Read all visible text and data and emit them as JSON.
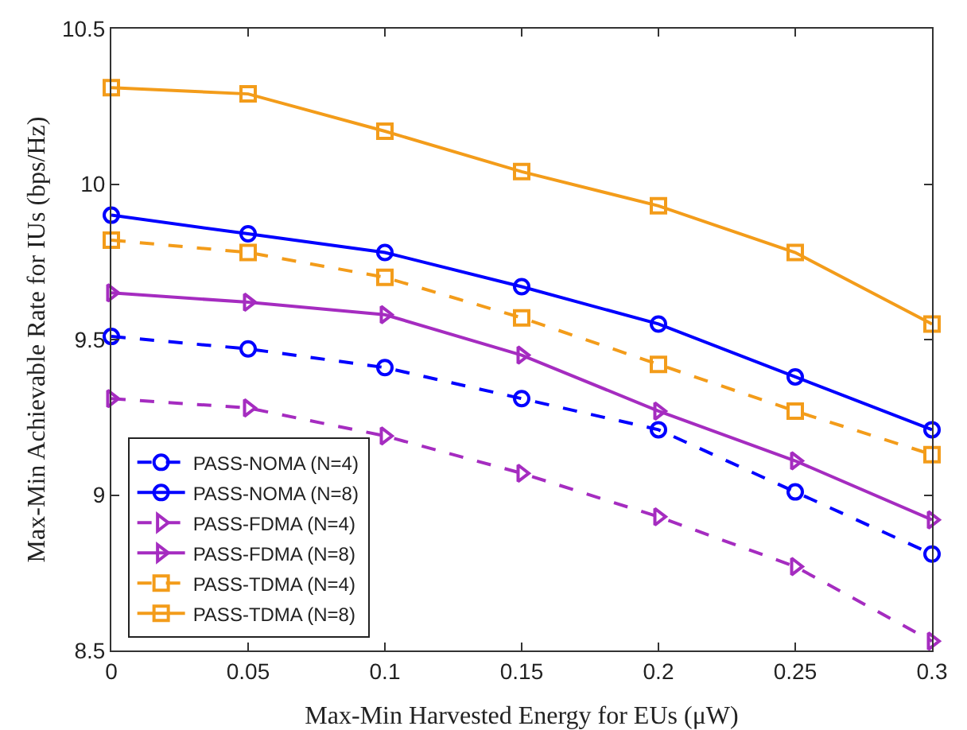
{
  "chart_data": {
    "type": "line",
    "xlabel": "Max-Min Harvested Energy for EUs (μW)",
    "ylabel": "Max-Min Achievable Rate for IUs (bps/Hz)",
    "x": [
      0,
      0.05,
      0.1,
      0.15,
      0.2,
      0.25,
      0.3
    ],
    "xlim": [
      0,
      0.3
    ],
    "xticks": [
      0,
      0.05,
      0.1,
      0.15,
      0.2,
      0.25,
      0.3
    ],
    "ylim": [
      8.5,
      10.5
    ],
    "yticks": [
      8.5,
      9,
      9.5,
      10,
      10.5
    ],
    "grid": false,
    "legend": "bottom left",
    "series": [
      {
        "name": "PASS-NOMA (N=4)",
        "color": "#0000ff",
        "marker": "circle",
        "line_style": "dashed",
        "values": [
          9.51,
          9.47,
          9.41,
          9.31,
          9.21,
          9.01,
          8.81
        ]
      },
      {
        "name": "PASS-NOMA (N=8)",
        "color": "#0000ff",
        "marker": "circle",
        "line_style": "solid",
        "values": [
          9.9,
          9.84,
          9.78,
          9.67,
          9.55,
          9.38,
          9.21
        ]
      },
      {
        "name": "PASS-FDMA (N=4)",
        "color": "#a52cc0",
        "marker": "triangle",
        "line_style": "dashed",
        "values": [
          9.31,
          9.28,
          9.19,
          9.07,
          8.93,
          8.77,
          8.53
        ]
      },
      {
        "name": "PASS-FDMA (N=8)",
        "color": "#a52cc0",
        "marker": "triangle",
        "line_style": "solid",
        "values": [
          9.65,
          9.62,
          9.58,
          9.45,
          9.27,
          9.11,
          8.92
        ]
      },
      {
        "name": "PASS-TDMA (N=4)",
        "color": "#f39c1a",
        "marker": "square",
        "line_style": "dashed",
        "values": [
          9.82,
          9.78,
          9.7,
          9.57,
          9.42,
          9.27,
          9.13
        ]
      },
      {
        "name": "PASS-TDMA (N=8)",
        "color": "#f39c1a",
        "marker": "square",
        "line_style": "solid",
        "values": [
          10.31,
          10.29,
          10.17,
          10.04,
          9.93,
          9.78,
          9.55
        ]
      }
    ]
  }
}
